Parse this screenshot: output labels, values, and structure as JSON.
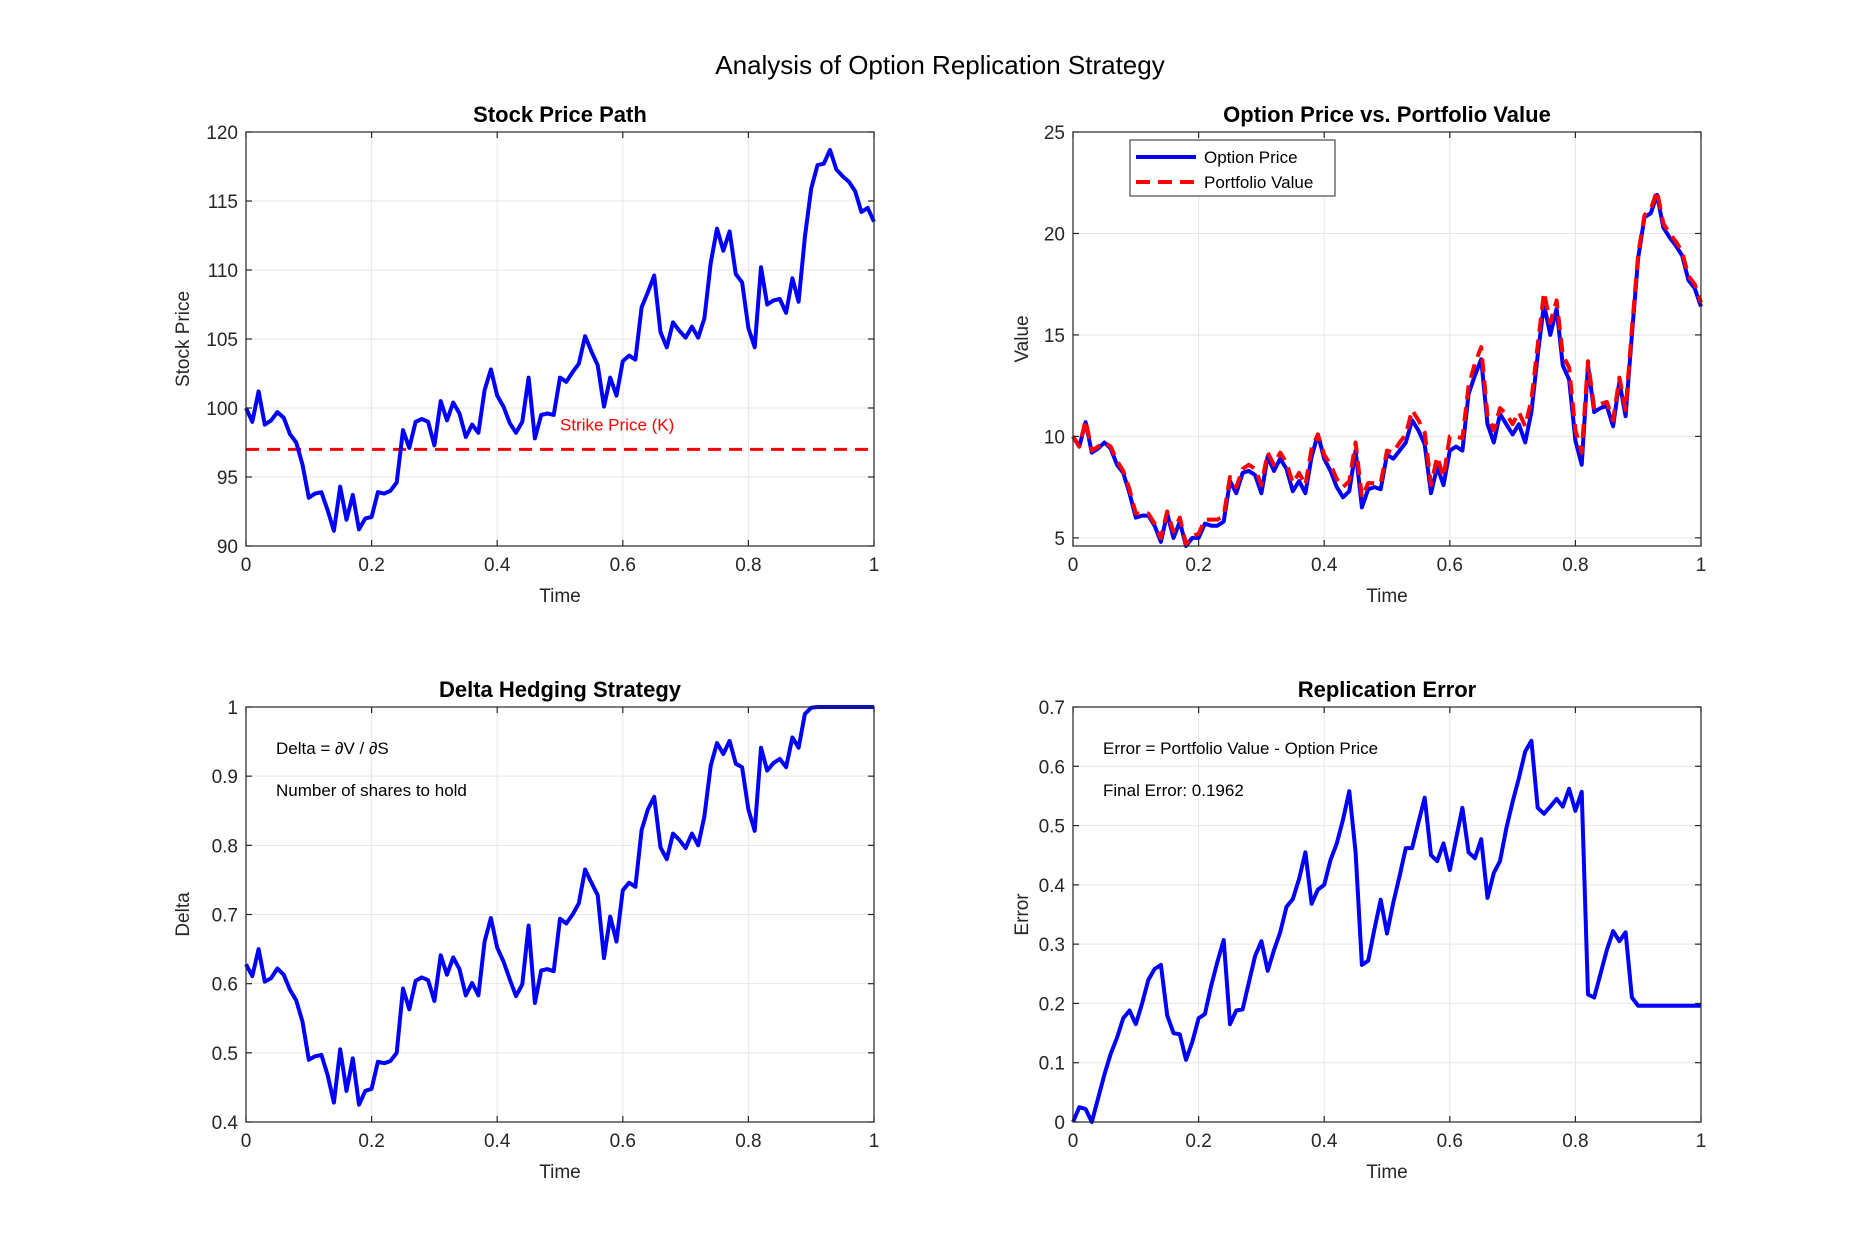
{
  "figure": {
    "title": "Analysis of Option Replication Strategy",
    "colors": {
      "blue": "#0000ff",
      "red": "#ff0000",
      "grid": "#e6e6e6",
      "axis": "#262626"
    }
  },
  "chart_data": [
    {
      "id": "stock",
      "type": "line",
      "title": "Stock Price Path",
      "xlabel": "Time",
      "ylabel": "Stock Price",
      "xlim": [
        0,
        1
      ],
      "ylim": [
        90,
        120
      ],
      "xticks": [
        "0",
        "0.2",
        "0.4",
        "0.6",
        "0.8",
        "1"
      ],
      "yticks": [
        "90",
        "95",
        "100",
        "105",
        "110",
        "115",
        "120"
      ],
      "grid": true,
      "x": [
        0,
        0.01,
        0.02,
        0.03,
        0.04,
        0.05,
        0.06,
        0.07,
        0.08,
        0.09,
        0.1,
        0.11,
        0.12,
        0.13,
        0.14,
        0.15,
        0.16,
        0.17,
        0.18,
        0.19,
        0.2,
        0.21,
        0.22,
        0.23,
        0.24,
        0.25,
        0.26,
        0.27,
        0.28,
        0.29,
        0.3,
        0.31,
        0.32,
        0.33,
        0.34,
        0.35,
        0.36,
        0.37,
        0.38,
        0.39,
        0.4,
        0.41,
        0.42,
        0.43,
        0.44,
        0.45,
        0.46,
        0.47,
        0.48,
        0.49,
        0.5,
        0.51,
        0.52,
        0.53,
        0.54,
        0.55,
        0.56,
        0.57,
        0.58,
        0.59,
        0.6,
        0.61,
        0.62,
        0.63,
        0.64,
        0.65,
        0.66,
        0.67,
        0.68,
        0.69,
        0.7,
        0.71,
        0.72,
        0.73,
        0.74,
        0.75,
        0.76,
        0.77,
        0.78,
        0.79,
        0.8,
        0.81,
        0.82,
        0.83,
        0.84,
        0.85,
        0.86,
        0.87,
        0.88,
        0.89,
        0.9,
        0.91,
        0.92,
        0.93,
        0.94,
        0.95,
        0.96,
        0.97,
        0.98,
        0.99,
        1
      ],
      "series": [
        {
          "color": "#0000ff",
          "style": "solid",
          "values": [
            100.0,
            99.0,
            101.2,
            98.8,
            99.1,
            99.7,
            99.3,
            98.1,
            97.5,
            95.9,
            93.5,
            93.8,
            93.9,
            92.6,
            91.1,
            94.3,
            91.9,
            93.7,
            91.2,
            92.0,
            92.1,
            93.9,
            93.8,
            94.0,
            94.6,
            98.4,
            97.1,
            99.0,
            99.2,
            99.0,
            97.3,
            100.5,
            99.1,
            100.4,
            99.6,
            97.9,
            98.8,
            98.2,
            101.3,
            102.8,
            100.9,
            100.1,
            98.9,
            98.2,
            99.0,
            102.2,
            97.8,
            99.5,
            99.6,
            99.5,
            102.2,
            101.9,
            102.6,
            103.2,
            105.2,
            104.1,
            103.1,
            100.1,
            102.2,
            100.9,
            103.4,
            103.8,
            103.5,
            107.3,
            108.4,
            109.6,
            105.5,
            104.4,
            106.2,
            105.6,
            105.1,
            105.9,
            105.1,
            106.5,
            110.5,
            113.0,
            111.4,
            112.8,
            109.7,
            109.1,
            105.8,
            104.4,
            110.2,
            107.5,
            107.8,
            107.9,
            106.9,
            109.4,
            107.7,
            112.4,
            115.9,
            117.6,
            117.7,
            118.7,
            117.3,
            116.8,
            116.4,
            115.7,
            114.2,
            114.5,
            113.5
          ]
        }
      ],
      "reference_line": {
        "value": 97,
        "label": "Strike Price (K)",
        "color": "#ff0000",
        "style": "dashed"
      }
    },
    {
      "id": "value",
      "type": "line",
      "title": "Option Price vs. Portfolio Value",
      "xlabel": "Time",
      "ylabel": "Value",
      "xlim": [
        0,
        1
      ],
      "ylim": [
        4.6,
        25
      ],
      "xticks": [
        "0",
        "0.2",
        "0.4",
        "0.6",
        "0.8",
        "1"
      ],
      "yticks": [
        "5",
        "10",
        "15",
        "20",
        "25"
      ],
      "grid": true,
      "legend": "top-left",
      "x": [
        0,
        0.01,
        0.02,
        0.03,
        0.04,
        0.05,
        0.06,
        0.07,
        0.08,
        0.09,
        0.1,
        0.11,
        0.12,
        0.13,
        0.14,
        0.15,
        0.16,
        0.17,
        0.18,
        0.19,
        0.2,
        0.21,
        0.22,
        0.23,
        0.24,
        0.25,
        0.26,
        0.27,
        0.28,
        0.29,
        0.3,
        0.31,
        0.32,
        0.33,
        0.34,
        0.35,
        0.36,
        0.37,
        0.38,
        0.39,
        0.4,
        0.41,
        0.42,
        0.43,
        0.44,
        0.45,
        0.46,
        0.47,
        0.48,
        0.49,
        0.5,
        0.51,
        0.52,
        0.53,
        0.54,
        0.55,
        0.56,
        0.57,
        0.58,
        0.59,
        0.6,
        0.61,
        0.62,
        0.63,
        0.64,
        0.65,
        0.66,
        0.67,
        0.68,
        0.69,
        0.7,
        0.71,
        0.72,
        0.73,
        0.74,
        0.75,
        0.76,
        0.77,
        0.78,
        0.79,
        0.8,
        0.81,
        0.82,
        0.83,
        0.84,
        0.85,
        0.86,
        0.87,
        0.88,
        0.89,
        0.9,
        0.91,
        0.92,
        0.93,
        0.94,
        0.95,
        0.96,
        0.97,
        0.98,
        0.99,
        1
      ],
      "series": [
        {
          "name": "Option Price",
          "color": "#0000ff",
          "style": "solid",
          "values": [
            10.0,
            9.5,
            10.7,
            9.2,
            9.4,
            9.7,
            9.4,
            8.6,
            8.2,
            7.2,
            6.0,
            6.1,
            6.1,
            5.6,
            4.8,
            6.2,
            5.0,
            5.8,
            4.6,
            5.0,
            5.0,
            5.7,
            5.6,
            5.6,
            5.8,
            7.8,
            7.2,
            8.2,
            8.3,
            8.1,
            7.2,
            9.0,
            8.3,
            8.9,
            8.4,
            7.3,
            7.8,
            7.2,
            9.0,
            10.1,
            8.9,
            8.3,
            7.5,
            7.0,
            7.3,
            9.3,
            6.5,
            7.4,
            7.5,
            7.4,
            9.1,
            8.9,
            9.3,
            9.7,
            10.8,
            10.3,
            9.6,
            7.2,
            8.5,
            7.6,
            9.3,
            9.5,
            9.3,
            12.1,
            13.0,
            13.8,
            10.6,
            9.7,
            11.1,
            10.6,
            10.1,
            10.6,
            9.7,
            11.2,
            14.0,
            16.5,
            15.0,
            16.3,
            13.5,
            12.8,
            9.8,
            8.6,
            13.5,
            11.2,
            11.4,
            11.5,
            10.5,
            12.7,
            11.0,
            15.0,
            18.8,
            20.8,
            21.0,
            21.9,
            20.3,
            19.8,
            19.4,
            18.9,
            17.7,
            17.3,
            16.4
          ]
        },
        {
          "name": "Portfolio Value",
          "color": "#ff0000",
          "style": "dashed",
          "values": [
            10.0,
            9.5,
            10.8,
            9.3,
            9.5,
            9.7,
            9.5,
            8.8,
            8.3,
            7.4,
            6.2,
            6.2,
            6.2,
            5.7,
            5.0,
            6.3,
            5.3,
            6.0,
            4.7,
            5.1,
            5.2,
            5.9,
            5.9,
            5.9,
            6.1,
            8.0,
            7.5,
            8.4,
            8.6,
            8.4,
            7.6,
            9.2,
            8.6,
            9.2,
            8.7,
            7.7,
            8.2,
            7.6,
            9.4,
            10.1,
            9.1,
            8.6,
            7.9,
            7.5,
            7.8,
            9.7,
            7.0,
            7.7,
            7.7,
            7.7,
            9.3,
            9.2,
            9.7,
            10.1,
            11.3,
            10.8,
            10.2,
            7.6,
            9.0,
            8.0,
            10.0,
            10.0,
            9.9,
            12.5,
            13.6,
            14.4,
            11.0,
            10.3,
            11.4,
            11.1,
            10.6,
            11.2,
            10.5,
            11.8,
            14.5,
            17.1,
            15.6,
            16.7,
            14.0,
            13.4,
            10.3,
            9.2,
            13.7,
            11.4,
            11.6,
            11.7,
            10.8,
            12.9,
            11.3,
            15.3,
            19.0,
            20.9,
            21.2,
            22.1,
            20.5,
            20.0,
            19.6,
            19.1,
            17.9,
            17.5,
            16.6
          ]
        }
      ]
    },
    {
      "id": "delta",
      "type": "line",
      "title": "Delta Hedging Strategy",
      "xlabel": "Time",
      "ylabel": "Delta",
      "xlim": [
        0,
        1
      ],
      "ylim": [
        0.4,
        1
      ],
      "xticks": [
        "0",
        "0.2",
        "0.4",
        "0.6",
        "0.8",
        "1"
      ],
      "yticks": [
        "0.4",
        "0.5",
        "0.6",
        "0.7",
        "0.8",
        "0.9",
        "1"
      ],
      "grid": true,
      "annotations": [
        "Delta = ∂V / ∂S",
        "Number of shares to hold"
      ],
      "x": [
        0,
        0.01,
        0.02,
        0.03,
        0.04,
        0.05,
        0.06,
        0.07,
        0.08,
        0.09,
        0.1,
        0.11,
        0.12,
        0.13,
        0.14,
        0.15,
        0.16,
        0.17,
        0.18,
        0.19,
        0.2,
        0.21,
        0.22,
        0.23,
        0.24,
        0.25,
        0.26,
        0.27,
        0.28,
        0.29,
        0.3,
        0.31,
        0.32,
        0.33,
        0.34,
        0.35,
        0.36,
        0.37,
        0.38,
        0.39,
        0.4,
        0.41,
        0.42,
        0.43,
        0.44,
        0.45,
        0.46,
        0.47,
        0.48,
        0.49,
        0.5,
        0.51,
        0.52,
        0.53,
        0.54,
        0.55,
        0.56,
        0.57,
        0.58,
        0.59,
        0.6,
        0.61,
        0.62,
        0.63,
        0.64,
        0.65,
        0.66,
        0.67,
        0.68,
        0.69,
        0.7,
        0.71,
        0.72,
        0.73,
        0.74,
        0.75,
        0.76,
        0.77,
        0.78,
        0.79,
        0.8,
        0.81,
        0.82,
        0.83,
        0.84,
        0.85,
        0.86,
        0.87,
        0.88,
        0.89,
        0.9,
        0.91,
        0.92,
        0.93,
        0.94,
        0.95,
        0.96,
        0.97,
        0.98,
        0.99,
        1
      ],
      "series": [
        {
          "color": "#0000ff",
          "style": "solid",
          "values": [
            0.628,
            0.611,
            0.65,
            0.603,
            0.608,
            0.622,
            0.613,
            0.591,
            0.576,
            0.545,
            0.49,
            0.495,
            0.497,
            0.468,
            0.428,
            0.505,
            0.445,
            0.492,
            0.425,
            0.445,
            0.448,
            0.487,
            0.485,
            0.488,
            0.5,
            0.593,
            0.563,
            0.604,
            0.609,
            0.605,
            0.575,
            0.641,
            0.613,
            0.638,
            0.621,
            0.583,
            0.601,
            0.583,
            0.661,
            0.695,
            0.652,
            0.632,
            0.606,
            0.582,
            0.599,
            0.684,
            0.572,
            0.619,
            0.621,
            0.618,
            0.694,
            0.687,
            0.7,
            0.716,
            0.765,
            0.746,
            0.728,
            0.637,
            0.697,
            0.661,
            0.735,
            0.746,
            0.74,
            0.822,
            0.852,
            0.87,
            0.797,
            0.78,
            0.817,
            0.808,
            0.796,
            0.817,
            0.8,
            0.842,
            0.915,
            0.948,
            0.932,
            0.951,
            0.918,
            0.913,
            0.852,
            0.821,
            0.941,
            0.908,
            0.919,
            0.925,
            0.913,
            0.956,
            0.941,
            0.99,
            0.999,
            1.0,
            1.0,
            1.0,
            1.0,
            1.0,
            1.0,
            1.0,
            1.0,
            1.0,
            1.0
          ]
        }
      ]
    },
    {
      "id": "error",
      "type": "line",
      "title": "Replication Error",
      "xlabel": "Time",
      "ylabel": "Error",
      "xlim": [
        0,
        1
      ],
      "ylim": [
        0,
        0.7
      ],
      "xticks": [
        "0",
        "0.2",
        "0.4",
        "0.6",
        "0.8",
        "1"
      ],
      "yticks": [
        "0",
        "0.1",
        "0.2",
        "0.3",
        "0.4",
        "0.5",
        "0.6",
        "0.7"
      ],
      "grid": true,
      "annotations": [
        "Error = Portfolio Value - Option Price",
        "Final Error: 0.1962"
      ],
      "x": [
        0,
        0.01,
        0.02,
        0.03,
        0.04,
        0.05,
        0.06,
        0.07,
        0.08,
        0.09,
        0.1,
        0.11,
        0.12,
        0.13,
        0.14,
        0.15,
        0.16,
        0.17,
        0.18,
        0.19,
        0.2,
        0.21,
        0.22,
        0.23,
        0.24,
        0.25,
        0.26,
        0.27,
        0.28,
        0.29,
        0.3,
        0.31,
        0.32,
        0.33,
        0.34,
        0.35,
        0.36,
        0.37,
        0.38,
        0.39,
        0.4,
        0.41,
        0.42,
        0.43,
        0.44,
        0.45,
        0.46,
        0.47,
        0.48,
        0.49,
        0.5,
        0.51,
        0.52,
        0.53,
        0.54,
        0.55,
        0.56,
        0.57,
        0.58,
        0.59,
        0.6,
        0.61,
        0.62,
        0.63,
        0.64,
        0.65,
        0.66,
        0.67,
        0.68,
        0.69,
        0.7,
        0.71,
        0.72,
        0.73,
        0.74,
        0.75,
        0.76,
        0.77,
        0.78,
        0.79,
        0.8,
        0.81,
        0.82,
        0.83,
        0.84,
        0.85,
        0.86,
        0.87,
        0.88,
        0.89,
        0.9,
        0.91,
        0.92,
        0.93,
        0.94,
        0.95,
        0.96,
        0.97,
        0.98,
        0.99,
        1
      ],
      "series": [
        {
          "color": "#0000ff",
          "style": "solid",
          "values": [
            0.0,
            0.025,
            0.022,
            0.0,
            0.04,
            0.08,
            0.115,
            0.142,
            0.175,
            0.188,
            0.165,
            0.2,
            0.24,
            0.258,
            0.265,
            0.18,
            0.15,
            0.148,
            0.105,
            0.135,
            0.175,
            0.182,
            0.23,
            0.27,
            0.307,
            0.165,
            0.188,
            0.19,
            0.235,
            0.28,
            0.305,
            0.255,
            0.29,
            0.32,
            0.363,
            0.376,
            0.41,
            0.455,
            0.368,
            0.392,
            0.4,
            0.442,
            0.47,
            0.51,
            0.558,
            0.455,
            0.265,
            0.272,
            0.325,
            0.375,
            0.318,
            0.37,
            0.415,
            0.462,
            0.462,
            0.505,
            0.547,
            0.45,
            0.44,
            0.47,
            0.425,
            0.478,
            0.53,
            0.455,
            0.445,
            0.477,
            0.378,
            0.42,
            0.44,
            0.495,
            0.54,
            0.58,
            0.625,
            0.643,
            0.53,
            0.52,
            0.532,
            0.545,
            0.532,
            0.562,
            0.525,
            0.557,
            0.215,
            0.21,
            0.25,
            0.29,
            0.322,
            0.305,
            0.32,
            0.21,
            0.196,
            0.196,
            0.1962,
            0.1962,
            0.1962,
            0.1962,
            0.1962,
            0.1962,
            0.1962,
            0.1962,
            0.1962
          ]
        }
      ]
    }
  ]
}
